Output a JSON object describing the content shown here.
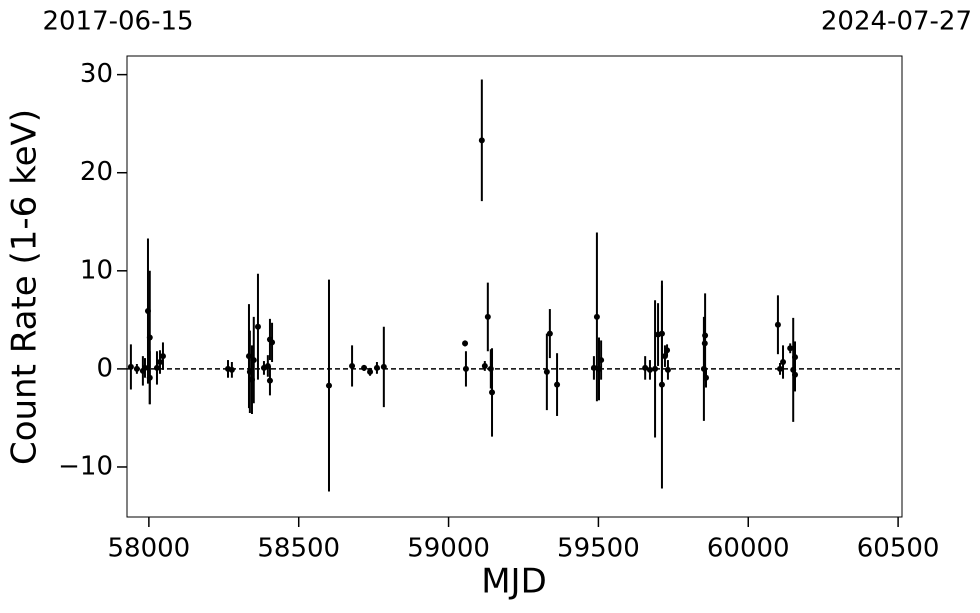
{
  "chart_data": {
    "type": "errorbar-scatter",
    "top_left_label": "2017-06-15",
    "top_right_label": "2024-07-27",
    "xlabel": "MJD",
    "ylabel": "Count Rate (1-6 keV)",
    "xlim": [
      57927,
      60513
    ],
    "ylim": [
      -15.1,
      31.9
    ],
    "xticks": [
      58000,
      58500,
      59000,
      59500,
      60000,
      60500
    ],
    "yticks": [
      {
        "value": -10,
        "label": "−10"
      },
      0,
      10,
      20,
      30
    ],
    "hline": 0,
    "series": [
      {
        "color": "#000000",
        "x": [
          57940,
          57960,
          57987,
          57997,
          58003,
          58003,
          57980,
          58027,
          58037,
          58047,
          58264,
          58277,
          58334,
          58337,
          58344,
          58350,
          58364,
          58384,
          58397,
          58404,
          58411,
          58404,
          58601,
          58678,
          58718,
          58738,
          58761,
          58784,
          59055,
          59058,
          59111,
          59121,
          59131,
          59141,
          59145,
          59328,
          59338,
          59362,
          59485,
          59495,
          59502,
          59509,
          59656,
          59672,
          59689,
          59699,
          59712,
          59712,
          59722,
          59729,
          59732,
          59852,
          59856,
          59859,
          59855,
          60099,
          60106,
          60116,
          60140,
          60150,
          60156,
          60156
        ],
        "values": [
          0.2,
          0,
          0.1,
          5.9,
          3.2,
          -0.9,
          -0.2,
          0.1,
          0.7,
          1.3,
          0,
          -0.1,
          1.3,
          -0.3,
          -1.1,
          0.9,
          4.3,
          0.1,
          0.3,
          3.0,
          2.7,
          -1.2,
          -1.7,
          0.3,
          0.1,
          -0.3,
          0.1,
          0.2,
          2.6,
          0,
          23.3,
          0.3,
          5.3,
          0,
          -2.4,
          -0.3,
          3.6,
          -1.6,
          0.1,
          5.3,
          0,
          0.9,
          0.1,
          -0.1,
          0,
          3.5,
          -1.6,
          3.6,
          1.3,
          1.9,
          -0.1,
          0,
          3.4,
          -0.9,
          2.6,
          4.5,
          0,
          0.7,
          2.1,
          -0.1,
          1.2,
          -0.6
        ],
        "errors": [
          2.3,
          0.5,
          1,
          7.4,
          6.8,
          2.7,
          1.5,
          1.7,
          1.2,
          1.4,
          0.9,
          0.8,
          5.3,
          4.2,
          3.5,
          4.4,
          5.4,
          0.7,
          1.1,
          2.1,
          2,
          1.5,
          10.8,
          2.1,
          0.3,
          0.4,
          0.6,
          4.1,
          0.3,
          1.8,
          6.2,
          0.5,
          3.5,
          2,
          4.5,
          3.9,
          2.5,
          3.2,
          1.2,
          8.6,
          3.2,
          2,
          1.2,
          1,
          7,
          3.2,
          10.6,
          4.9,
          1.1,
          0.6,
          1,
          5.3,
          4.3,
          1,
          2.4,
          3,
          0.6,
          1.7,
          0.5,
          5.3,
          1.6,
          1.7
        ]
      }
    ]
  }
}
